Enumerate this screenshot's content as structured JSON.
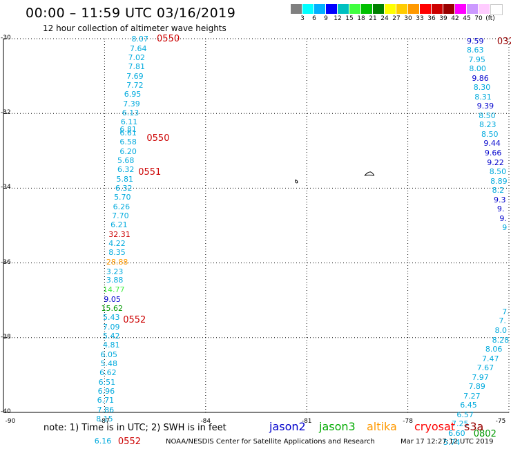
{
  "title": "00:00 – 11:59 UTC 03/16/2019",
  "subtitle": "12 hour collection of altimeter wave heights",
  "legend": {
    "colors": [
      "#808080",
      "#00ffff",
      "#00b0ff",
      "#0000ff",
      "#00c0c0",
      "#40ff40",
      "#00c000",
      "#008000",
      "#ffff00",
      "#ffcc00",
      "#ff9900",
      "#ff0000",
      "#cc0000",
      "#990000",
      "#ff00ff",
      "#cc99ff",
      "#ffccff",
      "#ffffff"
    ],
    "ticks": [
      "3",
      "6",
      "9",
      "12",
      "15",
      "18",
      "21",
      "24",
      "27",
      "30",
      "33",
      "36",
      "39",
      "42",
      "45",
      "70",
      "(ft)"
    ]
  },
  "axes": {
    "lat": [
      {
        "label": "-30",
        "v": -30
      },
      {
        "label": "-32",
        "v": -32
      },
      {
        "label": "-34",
        "v": -34
      },
      {
        "label": "-36",
        "v": -36
      },
      {
        "label": "-38",
        "v": -38
      },
      {
        "label": "-40",
        "v": -40
      }
    ],
    "lon": [
      {
        "label": "-90",
        "v": -90
      },
      {
        "label": "-87",
        "v": -87
      },
      {
        "label": "-84",
        "v": -84
      },
      {
        "label": "-81",
        "v": -81
      },
      {
        "label": "-78",
        "v": -78
      },
      {
        "label": "-75",
        "v": -75
      }
    ]
  },
  "note": "note:  1) Time is in UTC; 2) SWH is in feet",
  "satellites": [
    {
      "name": "jason2",
      "color": "#0000cc"
    },
    {
      "name": "jason3",
      "color": "#00aa00"
    },
    {
      "name": "altika",
      "color": "#ff9900"
    },
    {
      "name": "cryosat",
      "color": "#ff0000"
    },
    {
      "name": "s3a",
      "color": "#990000"
    }
  ],
  "footer": "NOAA/NESDIS Center for Satellite Applications and Research",
  "footer_time": "Mar 17 12:27:12 UTC 2019",
  "wave_colors": {
    "cyan": "#00aadd",
    "blue": "#0000cc",
    "red": "#cc0000",
    "orange": "#ff9900",
    "lime": "#44ee44",
    "green": "#009900",
    "darkred": "#990000"
  },
  "track_left": [
    {
      "v": "8.07",
      "lon": -86.2,
      "lat": -30.0,
      "c": "cyan"
    },
    {
      "v": "7.64",
      "lon": -86.25,
      "lat": -30.25,
      "c": "cyan"
    },
    {
      "v": "7.02",
      "lon": -86.3,
      "lat": -30.5,
      "c": "cyan"
    },
    {
      "v": "7.81",
      "lon": -86.3,
      "lat": -30.74,
      "c": "cyan"
    },
    {
      "v": "7.69",
      "lon": -86.35,
      "lat": -30.99,
      "c": "cyan"
    },
    {
      "v": "7.72",
      "lon": -86.35,
      "lat": -31.24,
      "c": "cyan"
    },
    {
      "v": "6.95",
      "lon": -86.42,
      "lat": -31.48,
      "c": "cyan"
    },
    {
      "v": "7.39",
      "lon": -86.45,
      "lat": -31.73,
      "c": "cyan"
    },
    {
      "v": "6.13",
      "lon": -86.48,
      "lat": -31.98,
      "c": "cyan"
    },
    {
      "v": "6.11",
      "lon": -86.52,
      "lat": -32.22,
      "c": "cyan"
    },
    {
      "v": "6.81",
      "lon": -86.55,
      "lat": -32.42,
      "c": "cyan"
    },
    {
      "v": "6.61",
      "lon": -86.55,
      "lat": -32.52,
      "c": "cyan"
    },
    {
      "v": "6.58",
      "lon": -86.55,
      "lat": -32.76,
      "c": "cyan"
    },
    {
      "v": "6.20",
      "lon": -86.55,
      "lat": -33.01,
      "c": "cyan"
    },
    {
      "v": "5.68",
      "lon": -86.62,
      "lat": -33.26,
      "c": "cyan"
    },
    {
      "v": "6.32",
      "lon": -86.62,
      "lat": -33.5,
      "c": "cyan"
    },
    {
      "v": "5.81",
      "lon": -86.65,
      "lat": -33.75,
      "c": "cyan"
    },
    {
      "v": "6.32",
      "lon": -86.68,
      "lat": -34.0,
      "c": "cyan"
    },
    {
      "v": "5.70",
      "lon": -86.72,
      "lat": -34.24,
      "c": "cyan"
    },
    {
      "v": "6.26",
      "lon": -86.75,
      "lat": -34.49,
      "c": "cyan"
    },
    {
      "v": "7.70",
      "lon": -86.78,
      "lat": -34.74,
      "c": "cyan"
    },
    {
      "v": "6.21",
      "lon": -86.82,
      "lat": -34.98,
      "c": "cyan"
    },
    {
      "v": "32.31",
      "lon": -86.88,
      "lat": -35.23,
      "c": "red"
    },
    {
      "v": "4.22",
      "lon": -86.88,
      "lat": -35.48,
      "c": "cyan"
    },
    {
      "v": "8.35",
      "lon": -86.88,
      "lat": -35.72,
      "c": "cyan"
    },
    {
      "v": "28.88",
      "lon": -86.95,
      "lat": -35.97,
      "c": "orange"
    },
    {
      "v": "3.23",
      "lon": -86.95,
      "lat": -36.22,
      "c": "cyan"
    },
    {
      "v": "3.88",
      "lon": -86.95,
      "lat": -36.46,
      "c": "cyan"
    },
    {
      "v": "14.77",
      "lon": -87.05,
      "lat": -36.71,
      "c": "lime"
    },
    {
      "v": "9.05",
      "lon": -87.02,
      "lat": -36.96,
      "c": "blue"
    },
    {
      "v": "15.62",
      "lon": -87.1,
      "lat": -37.2,
      "c": "green"
    },
    {
      "v": "5.43",
      "lon": -87.05,
      "lat": -37.45,
      "c": "cyan"
    },
    {
      "v": "7.09",
      "lon": -87.05,
      "lat": -37.7,
      "c": "cyan"
    },
    {
      "v": "5.42",
      "lon": -87.05,
      "lat": -37.94,
      "c": "cyan"
    },
    {
      "v": "4.81",
      "lon": -87.05,
      "lat": -38.19,
      "c": "cyan"
    },
    {
      "v": "6.05",
      "lon": -87.12,
      "lat": -38.44,
      "c": "cyan"
    },
    {
      "v": "5.48",
      "lon": -87.12,
      "lat": -38.68,
      "c": "cyan"
    },
    {
      "v": "6.62",
      "lon": -87.15,
      "lat": -38.93,
      "c": "cyan"
    },
    {
      "v": "6.51",
      "lon": -87.18,
      "lat": -39.18,
      "c": "cyan"
    },
    {
      "v": "6.96",
      "lon": -87.2,
      "lat": -39.42,
      "c": "cyan"
    },
    {
      "v": "6.71",
      "lon": -87.22,
      "lat": -39.67,
      "c": "cyan"
    },
    {
      "v": "7.86",
      "lon": -87.22,
      "lat": -39.92,
      "c": "cyan"
    },
    {
      "v": "8.15",
      "lon": -87.25,
      "lat": -40.16,
      "c": "cyan"
    },
    {
      "v": "6.16",
      "lon": -87.3,
      "lat": -40.75,
      "c": "cyan"
    }
  ],
  "track_right": [
    {
      "v": "9.59",
      "lon": -76.25,
      "lat": -30.05,
      "c": "blue"
    },
    {
      "v": "8.63",
      "lon": -76.25,
      "lat": -30.3,
      "c": "cyan"
    },
    {
      "v": "7.95",
      "lon": -76.2,
      "lat": -30.55,
      "c": "cyan"
    },
    {
      "v": "8.00",
      "lon": -76.18,
      "lat": -30.8,
      "c": "cyan"
    },
    {
      "v": "9.86",
      "lon": -76.1,
      "lat": -31.05,
      "c": "blue"
    },
    {
      "v": "8.30",
      "lon": -76.05,
      "lat": -31.3,
      "c": "cyan"
    },
    {
      "v": "8.31",
      "lon": -76.02,
      "lat": -31.55,
      "c": "cyan"
    },
    {
      "v": "9.39",
      "lon": -75.95,
      "lat": -31.8,
      "c": "blue"
    },
    {
      "v": "8.50",
      "lon": -75.9,
      "lat": -32.05,
      "c": "cyan"
    },
    {
      "v": "8.23",
      "lon": -75.88,
      "lat": -32.3,
      "c": "cyan"
    },
    {
      "v": "8.50",
      "lon": -75.82,
      "lat": -32.55,
      "c": "cyan"
    },
    {
      "v": "9.44",
      "lon": -75.75,
      "lat": -32.8,
      "c": "blue"
    },
    {
      "v": "9.66",
      "lon": -75.72,
      "lat": -33.05,
      "c": "blue"
    },
    {
      "v": "9.22",
      "lon": -75.65,
      "lat": -33.3,
      "c": "blue"
    },
    {
      "v": "8.50",
      "lon": -75.58,
      "lat": -33.55,
      "c": "cyan"
    },
    {
      "v": "8.89",
      "lon": -75.55,
      "lat": -33.8,
      "c": "cyan"
    },
    {
      "v": "8.2",
      "lon": -75.5,
      "lat": -34.05,
      "c": "cyan"
    },
    {
      "v": "9.3",
      "lon": -75.45,
      "lat": -34.3,
      "c": "blue"
    },
    {
      "v": "9.",
      "lon": -75.35,
      "lat": -34.55,
      "c": "blue"
    },
    {
      "v": "9.",
      "lon": -75.28,
      "lat": -34.8,
      "c": "blue"
    },
    {
      "v": "9",
      "lon": -75.2,
      "lat": -35.05,
      "c": "cyan"
    },
    {
      "v": "7.",
      "lon": -75.2,
      "lat": -37.3,
      "c": "cyan"
    },
    {
      "v": "7.",
      "lon": -75.3,
      "lat": -37.55,
      "c": "cyan"
    },
    {
      "v": "8.0",
      "lon": -75.42,
      "lat": -37.8,
      "c": "cyan"
    },
    {
      "v": "8.28",
      "lon": -75.5,
      "lat": -38.05,
      "c": "cyan"
    },
    {
      "v": "8.06",
      "lon": -75.7,
      "lat": -38.3,
      "c": "cyan"
    },
    {
      "v": "7.47",
      "lon": -75.8,
      "lat": -38.55,
      "c": "cyan"
    },
    {
      "v": "7.67",
      "lon": -75.95,
      "lat": -38.8,
      "c": "cyan"
    },
    {
      "v": "7.97",
      "lon": -76.1,
      "lat": -39.05,
      "c": "cyan"
    },
    {
      "v": "7.89",
      "lon": -76.2,
      "lat": -39.3,
      "c": "cyan"
    },
    {
      "v": "7.27",
      "lon": -76.35,
      "lat": -39.55,
      "c": "cyan"
    },
    {
      "v": "6.45",
      "lon": -76.45,
      "lat": -39.8,
      "c": "cyan"
    },
    {
      "v": "6.57",
      "lon": -76.55,
      "lat": -40.05,
      "c": "cyan"
    },
    {
      "v": "7.25",
      "lon": -76.7,
      "lat": -40.3,
      "c": "cyan"
    },
    {
      "v": "6.60",
      "lon": -76.8,
      "lat": -40.55,
      "c": "cyan"
    },
    {
      "v": "5.74",
      "lon": -76.95,
      "lat": -40.8,
      "c": "cyan"
    },
    {
      "v": "6.05",
      "lon": -77.05,
      "lat": -41.05,
      "c": "cyan"
    },
    {
      "v": "6.25",
      "lon": -77.2,
      "lat": -41.3,
      "c": "cyan"
    }
  ],
  "time_labels": [
    {
      "t": "0550",
      "lon": -85.45,
      "lat": -29.98,
      "c": "red"
    },
    {
      "t": "0550",
      "lon": -85.75,
      "lat": -32.65,
      "c": "red"
    },
    {
      "t": "0551",
      "lon": -86.0,
      "lat": -33.55,
      "c": "red"
    },
    {
      "t": "0552",
      "lon": -86.45,
      "lat": -37.5,
      "c": "red"
    },
    {
      "t": "0552",
      "lon": -86.6,
      "lat": -40.75,
      "c": "red"
    },
    {
      "t": "0325",
      "lon": -75.35,
      "lat": -30.05,
      "c": "darkred"
    },
    {
      "t": "0802",
      "lon": -76.05,
      "lat": -40.55,
      "c": "green"
    },
    {
      "t": "0801",
      "lon": -76.7,
      "lat": -41.3,
      "c": "green"
    }
  ],
  "edge_marks": [
    {
      "t": "0",
      "lon": -74.9,
      "lat": -32.7,
      "c": "red"
    }
  ]
}
